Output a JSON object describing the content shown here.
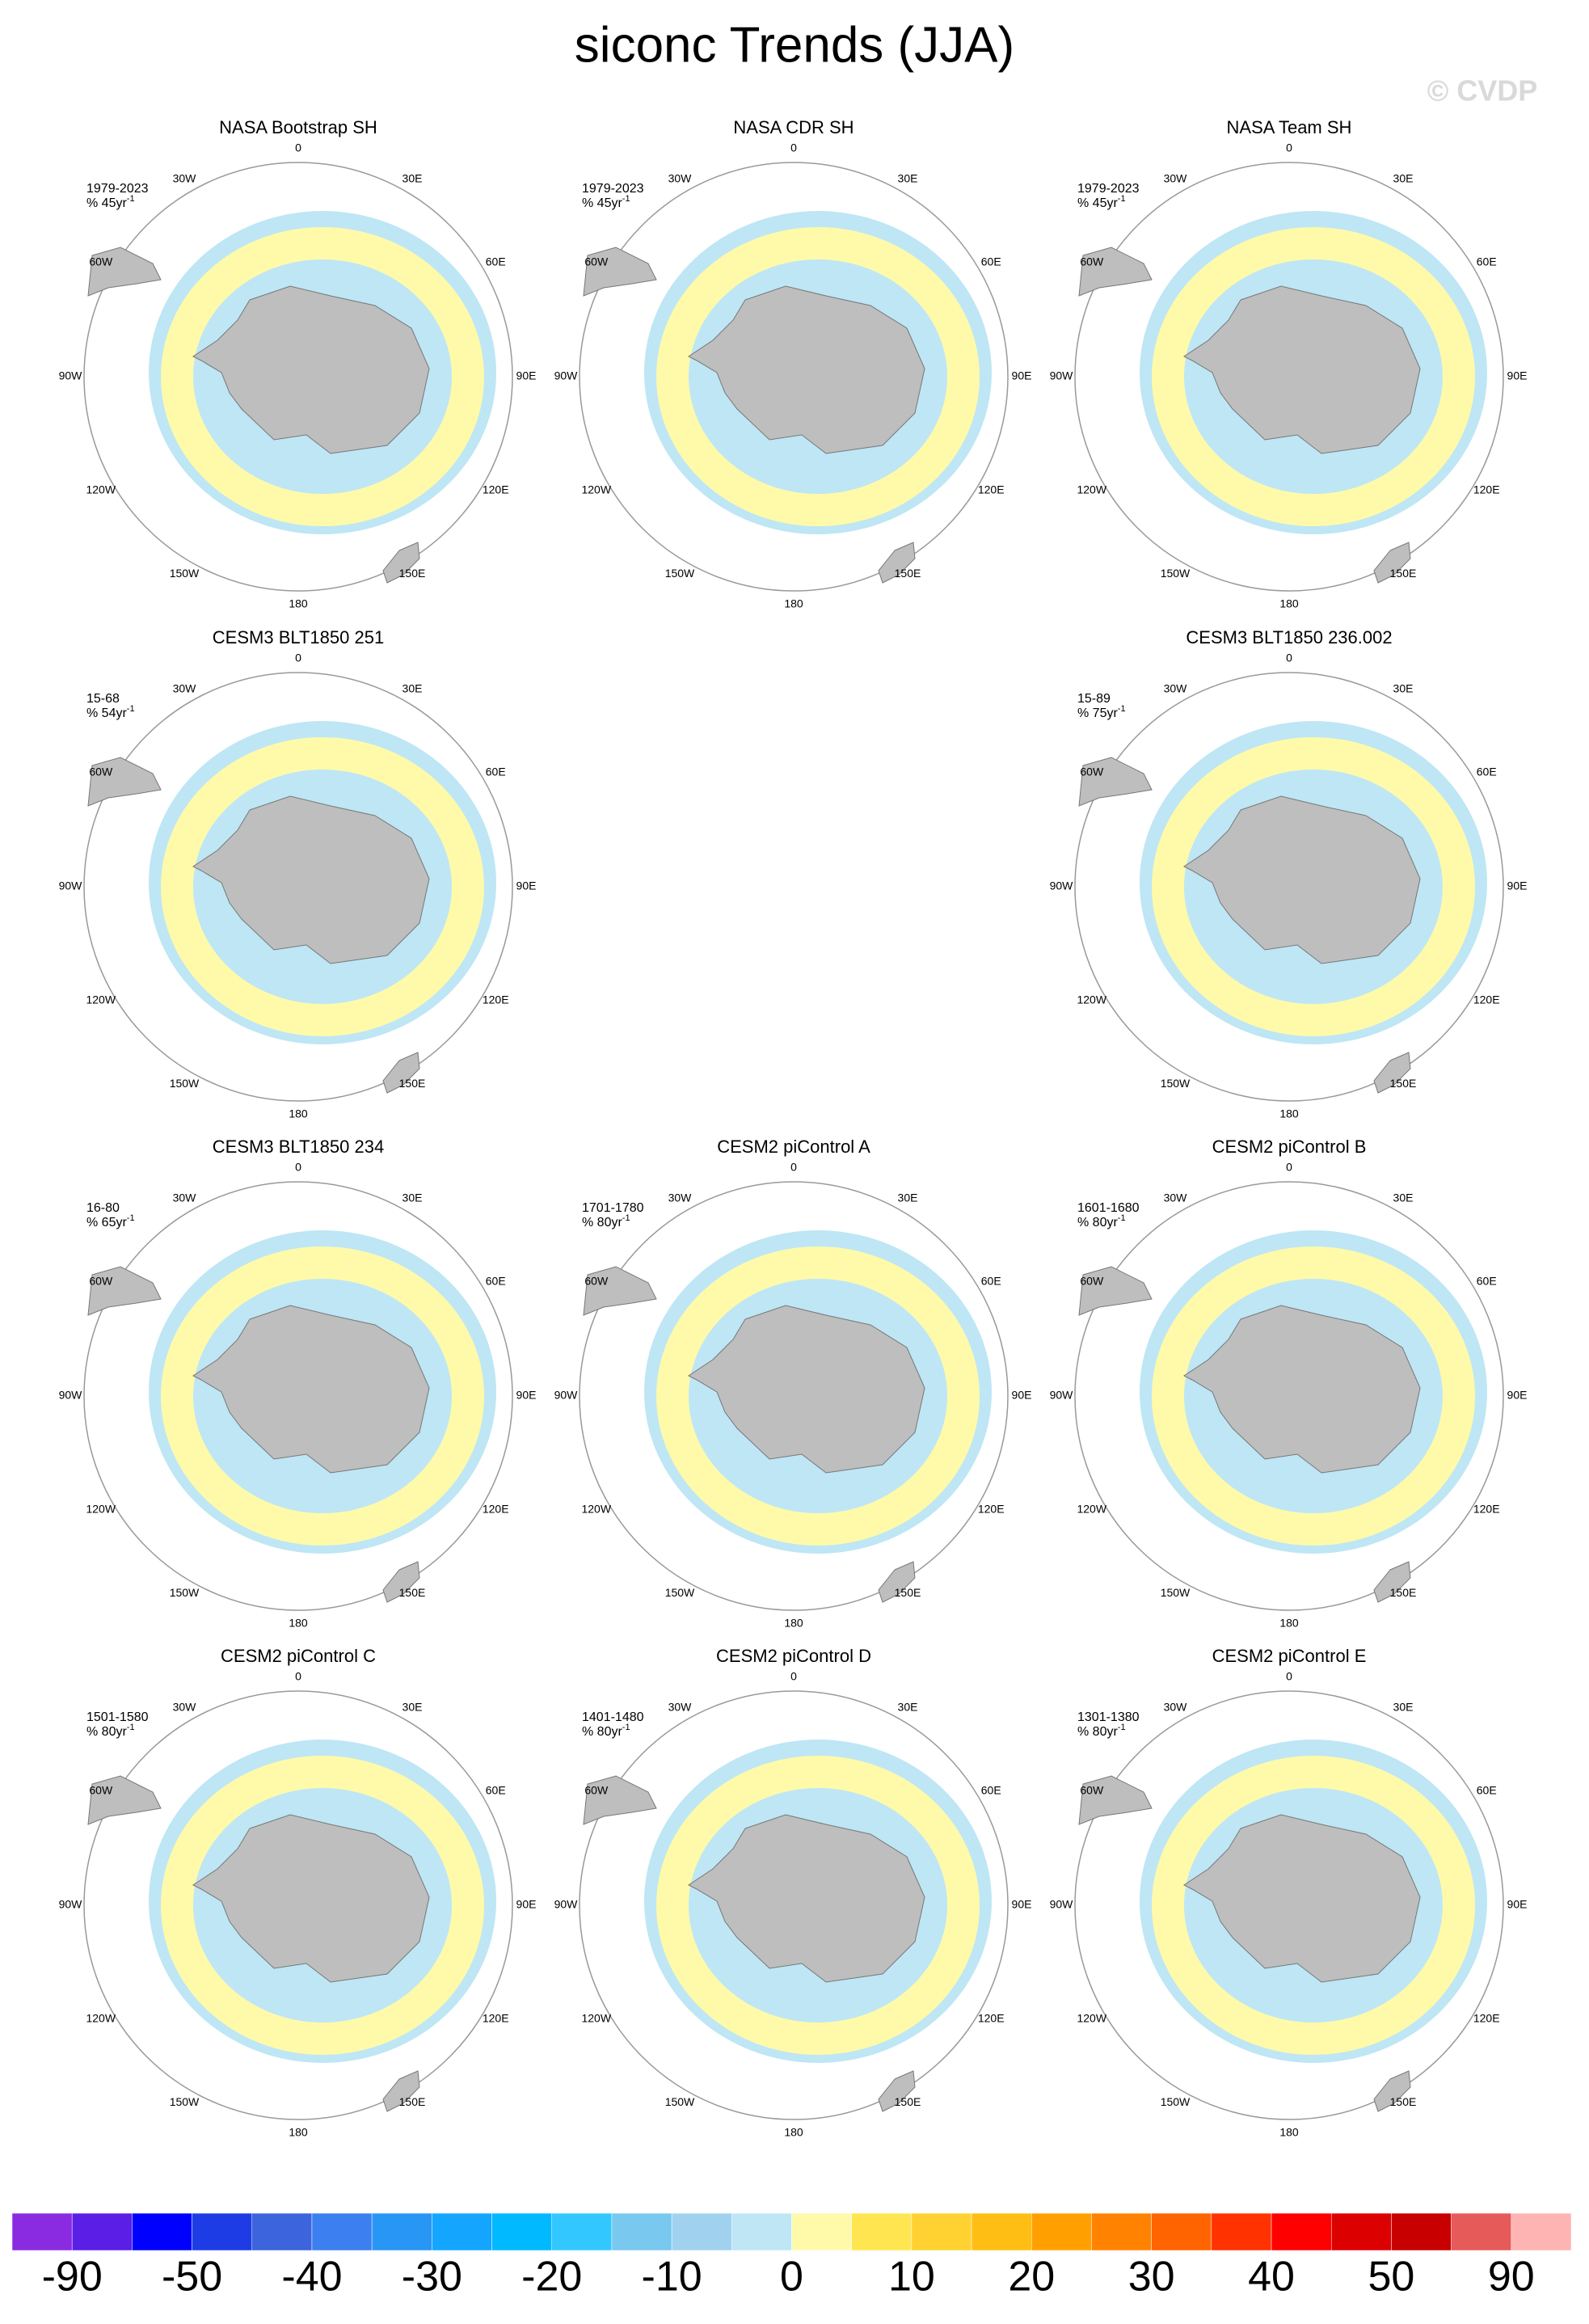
{
  "title": "siconc Trends (JJA)",
  "watermark": "© CVDP",
  "longitude_labels": [
    "0",
    "30E",
    "60E",
    "90E",
    "120E",
    "150E",
    "180",
    "150W",
    "120W",
    "90W",
    "60W",
    "30W"
  ],
  "panels": [
    {
      "title": "NASA Bootstrap SH",
      "period": "1979-2023",
      "units": "% 45yr",
      "units_sup": "-1"
    },
    {
      "title": "NASA CDR SH",
      "period": "1979-2023",
      "units": "% 45yr",
      "units_sup": "-1"
    },
    {
      "title": "NASA Team SH",
      "period": "1979-2023",
      "units": "% 45yr",
      "units_sup": "-1"
    },
    {
      "title": "CESM3 BLT1850 251",
      "period": "15-68",
      "units": "% 54yr",
      "units_sup": "-1"
    },
    {
      "title": "CESM3 BLT1850 236.002",
      "period": "15-89",
      "units": "% 75yr",
      "units_sup": "-1"
    },
    {
      "title": "CESM3 BLT1850 234",
      "period": "16-80",
      "units": "% 65yr",
      "units_sup": "-1"
    },
    {
      "title": "CESM2 piControl A",
      "period": "1701-1780",
      "units": "% 80yr",
      "units_sup": "-1"
    },
    {
      "title": "CESM2 piControl B",
      "period": "1601-1680",
      "units": "% 80yr",
      "units_sup": "-1"
    },
    {
      "title": "CESM2 piControl C",
      "period": "1501-1580",
      "units": "% 80yr",
      "units_sup": "-1"
    },
    {
      "title": "CESM2 piControl D",
      "period": "1401-1480",
      "units": "% 80yr",
      "units_sup": "-1"
    },
    {
      "title": "CESM2 piControl E",
      "period": "1301-1380",
      "units": "% 80yr",
      "units_sup": "-1"
    }
  ],
  "colorbar": {
    "colors": [
      "#8a2be2",
      "#5a1ee6",
      "#0000ff",
      "#1e3ce6",
      "#3c64dc",
      "#3c7ff0",
      "#2896f5",
      "#14a5ff",
      "#00b9ff",
      "#32c8ff",
      "#78c8f0",
      "#a0d2f0",
      "#bee6f5",
      "#fffaaa",
      "#ffe650",
      "#ffd232",
      "#ffbe14",
      "#ffa000",
      "#ff8200",
      "#ff6400",
      "#ff3200",
      "#ff0000",
      "#dc0000",
      "#c80000",
      "#e65a5a",
      "#ffb4b4"
    ],
    "labels": [
      -90,
      -50,
      -40,
      -30,
      -20,
      -10,
      0,
      10,
      20,
      30,
      40,
      50,
      90
    ]
  }
}
